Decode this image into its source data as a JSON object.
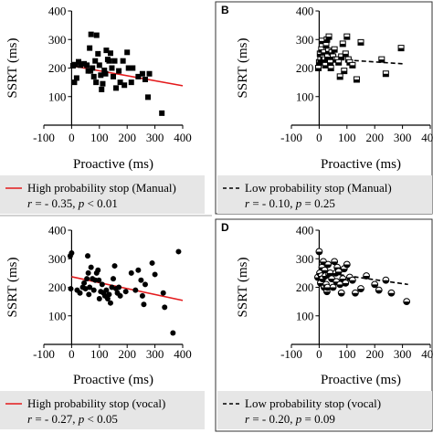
{
  "chart_data": [
    {
      "panel": "",
      "type": "scatter",
      "marker": "square",
      "xlabel": "Proactive (ms)",
      "ylabel": "SSRT (ms)",
      "xlim": [
        -100,
        400
      ],
      "ylim": [
        0,
        400
      ],
      "xticks": [
        "-100",
        "0",
        "100",
        "200",
        "300",
        "400"
      ],
      "yticks": [
        "100",
        "200",
        "300",
        "400"
      ],
      "trend": {
        "x": [
          0,
          400
        ],
        "y": [
          208,
          138
        ],
        "color": "#e41a1c",
        "style": "solid"
      },
      "legend": {
        "label": "High probability stop (Manual)",
        "stats_r": "r = - 0.35, ",
        "stats_p": "p < 0.01"
      },
      "points": [
        [
          5,
          208
        ],
        [
          10,
          150
        ],
        [
          12,
          212
        ],
        [
          18,
          165
        ],
        [
          25,
          222
        ],
        [
          32,
          210
        ],
        [
          45,
          215
        ],
        [
          55,
          210
        ],
        [
          60,
          190
        ],
        [
          65,
          270
        ],
        [
          68,
          190
        ],
        [
          70,
          318
        ],
        [
          75,
          200
        ],
        [
          80,
          170
        ],
        [
          85,
          225
        ],
        [
          88,
          150
        ],
        [
          90,
          315
        ],
        [
          95,
          250
        ],
        [
          100,
          210
        ],
        [
          105,
          175
        ],
        [
          108,
          125
        ],
        [
          112,
          145
        ],
        [
          118,
          192
        ],
        [
          122,
          180
        ],
        [
          125,
          262
        ],
        [
          130,
          230
        ],
        [
          135,
          225
        ],
        [
          140,
          252
        ],
        [
          145,
          200
        ],
        [
          150,
          170
        ],
        [
          155,
          225
        ],
        [
          160,
          130
        ],
        [
          170,
          190
        ],
        [
          175,
          150
        ],
        [
          185,
          225
        ],
        [
          190,
          140
        ],
        [
          200,
          255
        ],
        [
          205,
          200
        ],
        [
          215,
          150
        ],
        [
          220,
          200
        ],
        [
          240,
          170
        ],
        [
          255,
          180
        ],
        [
          265,
          160
        ],
        [
          275,
          98
        ],
        [
          280,
          180
        ],
        [
          325,
          42
        ]
      ]
    },
    {
      "panel": "B",
      "type": "scatter",
      "marker": "half-square",
      "xlabel": "Proactive (ms)",
      "ylabel": "SSRT (ms)",
      "xlim": [
        -100,
        400
      ],
      "ylim": [
        0,
        400
      ],
      "xticks": [
        "-100",
        "0",
        "100",
        "200",
        "300",
        "400"
      ],
      "yticks": [
        "100",
        "200",
        "300",
        "400"
      ],
      "trend": {
        "x": [
          -5,
          300
        ],
        "y": [
          235,
          215
        ],
        "color": "#000000",
        "style": "dashed"
      },
      "legend": {
        "label": "Low probability stop (Manual)",
        "stats_r": "r = - 0.10, ",
        "stats_p": "p = 0.25"
      },
      "points": [
        [
          -3,
          200
        ],
        [
          0,
          220
        ],
        [
          3,
          250
        ],
        [
          5,
          230
        ],
        [
          8,
          265
        ],
        [
          10,
          295
        ],
        [
          15,
          240
        ],
        [
          18,
          255
        ],
        [
          20,
          230
        ],
        [
          22,
          210
        ],
        [
          25,
          280
        ],
        [
          28,
          300
        ],
        [
          30,
          240
        ],
        [
          33,
          260
        ],
        [
          35,
          310
        ],
        [
          40,
          220
        ],
        [
          42,
          200
        ],
        [
          45,
          255
        ],
        [
          50,
          240
        ],
        [
          55,
          265
        ],
        [
          60,
          230
        ],
        [
          65,
          230
        ],
        [
          70,
          220
        ],
        [
          75,
          170
        ],
        [
          80,
          240
        ],
        [
          85,
          285
        ],
        [
          90,
          190
        ],
        [
          95,
          250
        ],
        [
          100,
          310
        ],
        [
          105,
          230
        ],
        [
          110,
          220
        ],
        [
          120,
          210
        ],
        [
          135,
          160
        ],
        [
          150,
          290
        ],
        [
          225,
          230
        ],
        [
          240,
          180
        ],
        [
          295,
          270
        ]
      ]
    },
    {
      "panel": "",
      "type": "scatter",
      "marker": "circle",
      "xlabel": "Proactive (ms)",
      "ylabel": "SSRT (ms)",
      "xlim": [
        -100,
        400
      ],
      "ylim": [
        0,
        400
      ],
      "xticks": [
        "-100",
        "0",
        "100",
        "200",
        "300",
        "400"
      ],
      "yticks": [
        "100",
        "200",
        "300",
        "400"
      ],
      "trend": {
        "x": [
          0,
          400
        ],
        "y": [
          237,
          154
        ],
        "color": "#e41a1c",
        "style": "solid"
      },
      "legend": {
        "label": "High probability stop (vocal)",
        "stats_r": "r = - 0.27, ",
        "stats_p": "p < 0.05"
      },
      "points": [
        [
          -5,
          310
        ],
        [
          -3,
          195
        ],
        [
          0,
          320
        ],
        [
          20,
          190
        ],
        [
          30,
          180
        ],
        [
          40,
          200
        ],
        [
          45,
          215
        ],
        [
          50,
          195
        ],
        [
          55,
          230
        ],
        [
          58,
          310
        ],
        [
          60,
          250
        ],
        [
          62,
          175
        ],
        [
          65,
          200
        ],
        [
          70,
          270
        ],
        [
          75,
          230
        ],
        [
          80,
          190
        ],
        [
          85,
          225
        ],
        [
          90,
          250
        ],
        [
          95,
          260
        ],
        [
          98,
          225
        ],
        [
          100,
          160
        ],
        [
          105,
          185
        ],
        [
          110,
          210
        ],
        [
          115,
          180
        ],
        [
          120,
          170
        ],
        [
          125,
          190
        ],
        [
          130,
          160
        ],
        [
          135,
          175
        ],
        [
          140,
          145
        ],
        [
          145,
          200
        ],
        [
          150,
          230
        ],
        [
          155,
          275
        ],
        [
          160,
          195
        ],
        [
          165,
          180
        ],
        [
          170,
          200
        ],
        [
          175,
          170
        ],
        [
          195,
          185
        ],
        [
          215,
          250
        ],
        [
          230,
          190
        ],
        [
          240,
          260
        ],
        [
          250,
          225
        ],
        [
          255,
          170
        ],
        [
          260,
          140
        ],
        [
          265,
          210
        ],
        [
          290,
          285
        ],
        [
          300,
          245
        ],
        [
          330,
          180
        ],
        [
          335,
          130
        ],
        [
          365,
          40
        ],
        [
          385,
          325
        ]
      ]
    },
    {
      "panel": "D",
      "type": "scatter",
      "marker": "half-circle",
      "xlabel": "Proactive (ms)",
      "ylabel": "SSRT (ms)",
      "xlim": [
        -100,
        400
      ],
      "ylim": [
        0,
        400
      ],
      "xticks": [
        "-100",
        "0",
        "100",
        "200",
        "300",
        "400"
      ],
      "yticks": [
        "100",
        "200",
        "300",
        "400"
      ],
      "trend": {
        "x": [
          -5,
          320
        ],
        "y": [
          255,
          210
        ],
        "color": "#000000",
        "style": "dashed"
      },
      "legend": {
        "label": "Low probability stop (vocal)",
        "stats_r": "r = - 0.20, ",
        "stats_p": "p = 0.09"
      },
      "points": [
        [
          -5,
          235
        ],
        [
          0,
          325
        ],
        [
          2,
          250
        ],
        [
          5,
          215
        ],
        [
          8,
          240
        ],
        [
          10,
          270
        ],
        [
          12,
          230
        ],
        [
          15,
          290
        ],
        [
          18,
          200
        ],
        [
          20,
          260
        ],
        [
          22,
          240
        ],
        [
          25,
          210
        ],
        [
          28,
          185
        ],
        [
          30,
          200
        ],
        [
          32,
          280
        ],
        [
          35,
          245
        ],
        [
          40,
          250
        ],
        [
          45,
          230
        ],
        [
          50,
          200
        ],
        [
          55,
          290
        ],
        [
          60,
          250
        ],
        [
          62,
          220
        ],
        [
          65,
          270
        ],
        [
          70,
          255
        ],
        [
          75,
          210
        ],
        [
          80,
          180
        ],
        [
          85,
          230
        ],
        [
          90,
          265
        ],
        [
          95,
          215
        ],
        [
          100,
          280
        ],
        [
          110,
          235
        ],
        [
          120,
          225
        ],
        [
          130,
          180
        ],
        [
          150,
          195
        ],
        [
          170,
          240
        ],
        [
          200,
          210
        ],
        [
          215,
          190
        ],
        [
          240,
          225
        ],
        [
          260,
          180
        ],
        [
          315,
          150
        ]
      ]
    }
  ]
}
